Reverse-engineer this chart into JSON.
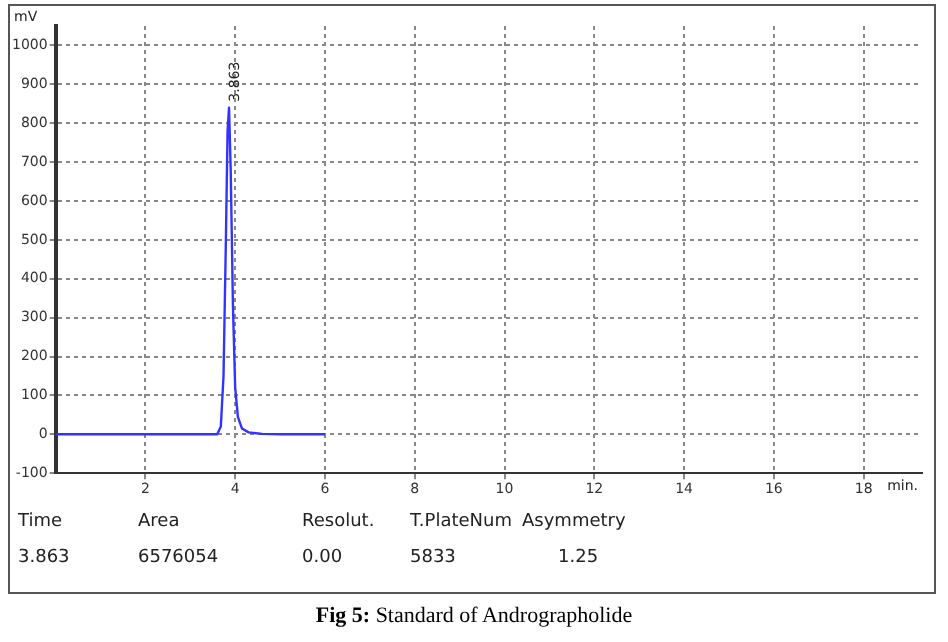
{
  "chart_data": {
    "type": "line",
    "title": "Fig 5: Standard of Andrographolide",
    "xlabel": "min.",
    "ylabel": "mV",
    "x": [
      0,
      1,
      2,
      3,
      3.6,
      3.68,
      3.74,
      3.79,
      3.83,
      3.863,
      3.9,
      3.95,
      4.0,
      4.06,
      4.15,
      4.3,
      4.6,
      5,
      6
    ],
    "series": [
      {
        "color": "#3333ff",
        "values": [
          0,
          0,
          0,
          0,
          0,
          20,
          150,
          480,
          780,
          840,
          680,
          330,
          120,
          45,
          15,
          5,
          1,
          0,
          0
        ]
      }
    ],
    "xlim": [
      0,
      19.3
    ],
    "xticks": [
      2,
      4,
      6,
      8,
      10,
      12,
      14,
      16,
      18
    ],
    "ylim": [
      -100,
      1050
    ],
    "yticks": [
      -100,
      0,
      100,
      200,
      300,
      400,
      500,
      600,
      700,
      800,
      900,
      1000
    ],
    "grid": true,
    "line_style": "solid",
    "marker": "none",
    "legend": false,
    "annotations": [
      {
        "text": "3.863",
        "x": 3.863,
        "y": 840
      },
      "Time",
      "Area",
      "Resolut.",
      "T.PlateNum",
      "Asymmetry",
      "3.863",
      "6576054",
      "0.00",
      "5833",
      "1.25"
    ]
  }
}
